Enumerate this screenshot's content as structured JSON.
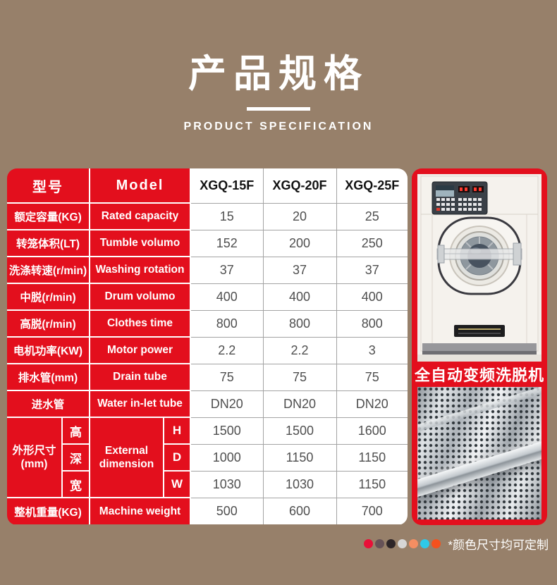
{
  "page": {
    "title_cn": "产品规格",
    "title_en": "PRODUCT SPECIFICATION"
  },
  "colors": {
    "background": "#97806a",
    "accent_red": "#e30f1d",
    "value_text": "#4f4f4f"
  },
  "table": {
    "header": {
      "label_cn": "型号",
      "label_en": "Model",
      "models": [
        "XGQ-15F",
        "XGQ-20F",
        "XGQ-25F"
      ]
    },
    "rows": [
      {
        "cn": "额定容量(KG)",
        "en": "Rated capacity",
        "values": [
          "15",
          "20",
          "25"
        ]
      },
      {
        "cn": "转笼体积(LT)",
        "en": "Tumble volumo",
        "values": [
          "152",
          "200",
          "250"
        ]
      },
      {
        "cn": "洗涤转速(r/min)",
        "en": "Washing rotation",
        "values": [
          "37",
          "37",
          "37"
        ]
      },
      {
        "cn": "中脱(r/min)",
        "en": "Drum volumo",
        "values": [
          "400",
          "400",
          "400"
        ]
      },
      {
        "cn": "高脱(r/min)",
        "en": "Clothes time",
        "values": [
          "800",
          "800",
          "800"
        ]
      },
      {
        "cn": "电机功率(KW)",
        "en": "Motor power",
        "values": [
          "2.2",
          "2.2",
          "3"
        ]
      },
      {
        "cn": "排水管(mm)",
        "en": "Drain tube",
        "values": [
          "75",
          "75",
          "75"
        ]
      },
      {
        "cn": "进水管",
        "en": "Water in-let tube",
        "values": [
          "DN20",
          "DN20",
          "DN20"
        ]
      }
    ],
    "dimension_group": {
      "cn_line1": "外形尺寸",
      "cn_line2": "(mm)",
      "en_line1": "External",
      "en_line2": "dimension",
      "rows": [
        {
          "cn": "高",
          "code": "H",
          "values": [
            "1500",
            "1500",
            "1600"
          ]
        },
        {
          "cn": "深",
          "code": "D",
          "values": [
            "1000",
            "1150",
            "1150"
          ]
        },
        {
          "cn": "宽",
          "code": "W",
          "values": [
            "1030",
            "1030",
            "1150"
          ]
        }
      ]
    },
    "weight_row": {
      "cn": "整机重量(KG)",
      "en": "Machine weight",
      "values": [
        "500",
        "600",
        "700"
      ]
    }
  },
  "side_panel": {
    "caption": "全自动变频洗脱机"
  },
  "footer": {
    "note": "*颜色尺寸均可定制",
    "dot_colors": [
      "#e80f38",
      "#665257",
      "#2d2528",
      "#d6d6d6",
      "#f58e62",
      "#2fc9e8",
      "#f4511d"
    ]
  }
}
